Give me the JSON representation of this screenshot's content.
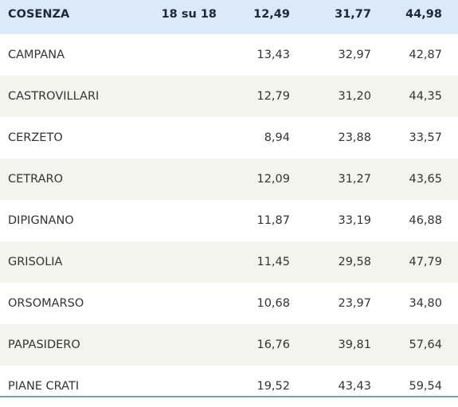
{
  "colors": {
    "header_bg": "#dce9f8",
    "stripe_bg": "#f4f4ef",
    "plain_bg": "#ffffff",
    "bottom_line": "#6f9ec8"
  },
  "header": {
    "name": "COSENZA",
    "sections": "18 su 18",
    "v1": "12,49",
    "v2": "31,77",
    "v3": "44,98"
  },
  "rows": [
    {
      "name": "CAMPANA",
      "v1": "13,43",
      "v2": "32,97",
      "v3": "42,87"
    },
    {
      "name": "CASTROVILLARI",
      "v1": "12,79",
      "v2": "31,20",
      "v3": "44,35"
    },
    {
      "name": "CERZETO",
      "v1": "8,94",
      "v2": "23,88",
      "v3": "33,57"
    },
    {
      "name": "CETRARO",
      "v1": "12,09",
      "v2": "31,27",
      "v3": "43,65"
    },
    {
      "name": "DIPIGNANO",
      "v1": "11,87",
      "v2": "33,19",
      "v3": "46,88"
    },
    {
      "name": "GRISOLIA",
      "v1": "11,45",
      "v2": "29,58",
      "v3": "47,79"
    },
    {
      "name": "ORSOMARSO",
      "v1": "10,68",
      "v2": "23,97",
      "v3": "34,80"
    },
    {
      "name": "PAPASIDERO",
      "v1": "16,76",
      "v2": "39,81",
      "v3": "57,64"
    },
    {
      "name": "PIANE CRATI",
      "v1": "19,52",
      "v2": "43,43",
      "v3": "59,54"
    }
  ]
}
